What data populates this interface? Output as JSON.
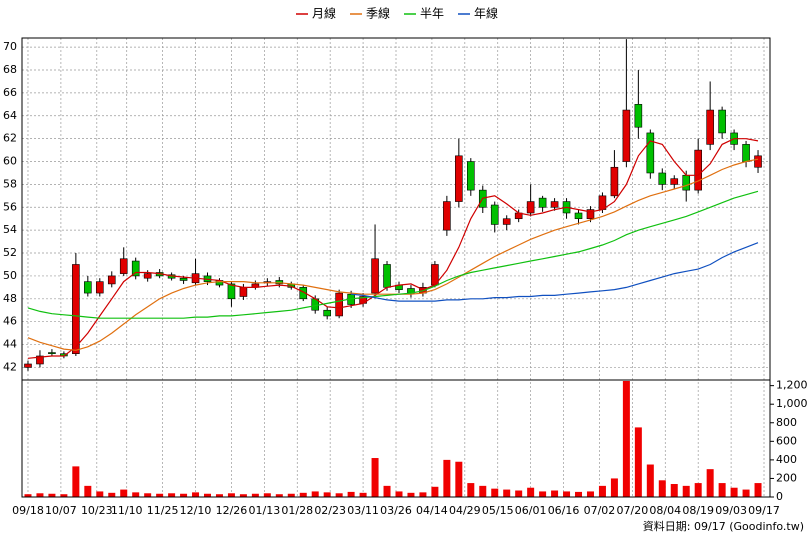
{
  "chart_data": {
    "type": "candlestick",
    "x": [
      0,
      4,
      8,
      12,
      16,
      20,
      24,
      28,
      32,
      36,
      40,
      44,
      48,
      52,
      56,
      60,
      64,
      68,
      72,
      76,
      80,
      84,
      88,
      92,
      96,
      100,
      104,
      108,
      112,
      116,
      120,
      124,
      128,
      132,
      136,
      140,
      144,
      148,
      152,
      156,
      160,
      164,
      168,
      172,
      176,
      180,
      184,
      188,
      192,
      196,
      200,
      204,
      208,
      212,
      216,
      220,
      224,
      228,
      232,
      236,
      240,
      244
    ],
    "candles": {
      "up_color": "#e00000",
      "down_color": "#00c000",
      "open": [
        42.0,
        42.3,
        43.3,
        43.2,
        43.2,
        49.5,
        48.5,
        49.3,
        50.2,
        51.3,
        49.8,
        50.3,
        50.1,
        49.8,
        49.4,
        50.0,
        49.6,
        49.3,
        48.2,
        49.0,
        49.4,
        49.6,
        49.3,
        49.0,
        48.0,
        47.0,
        46.5,
        48.4,
        47.6,
        48.5,
        51.0,
        49.2,
        48.9,
        48.5,
        49.2,
        54.0,
        56.5,
        60.0,
        57.5,
        56.2,
        54.5,
        55.0,
        55.5,
        56.8,
        56.0,
        56.5,
        55.5,
        55.0,
        55.8,
        57.0,
        60.0,
        65.0,
        62.5,
        59.0,
        58.0,
        58.8,
        57.5,
        61.5,
        64.5,
        62.5,
        61.5,
        59.5
      ],
      "high": [
        42.6,
        43.5,
        43.6,
        43.4,
        52.0,
        50.0,
        49.8,
        50.4,
        52.5,
        51.6,
        50.5,
        50.6,
        50.3,
        50.0,
        51.5,
        50.3,
        49.8,
        49.5,
        49.3,
        49.6,
        49.8,
        49.9,
        49.5,
        49.2,
        48.3,
        47.3,
        48.8,
        48.7,
        48.5,
        54.5,
        51.3,
        49.5,
        49.2,
        49.4,
        51.3,
        57.0,
        62.0,
        60.3,
        57.9,
        56.5,
        55.3,
        55.8,
        58.0,
        57.0,
        56.8,
        56.8,
        55.8,
        56.1,
        57.3,
        61.0,
        70.7,
        68.0,
        62.8,
        59.4,
        58.8,
        59.2,
        62.0,
        67.0,
        64.8,
        62.8,
        61.8,
        61.0
      ],
      "low": [
        41.7,
        42.0,
        43.0,
        42.8,
        43.0,
        48.2,
        48.2,
        49.0,
        50.0,
        49.7,
        49.5,
        49.8,
        49.6,
        49.3,
        49.2,
        49.2,
        49.0,
        47.3,
        47.9,
        48.8,
        49.1,
        49.0,
        48.8,
        47.8,
        46.7,
        46.2,
        46.3,
        47.2,
        47.3,
        48.2,
        48.7,
        48.5,
        48.1,
        48.2,
        49.0,
        53.5,
        56.0,
        57.0,
        55.5,
        53.8,
        54.0,
        54.7,
        55.2,
        55.6,
        55.7,
        55.0,
        54.5,
        54.7,
        55.5,
        56.8,
        59.5,
        62.0,
        58.5,
        57.5,
        57.6,
        56.5,
        57.2,
        61.0,
        62.0,
        61.0,
        59.5,
        59.0
      ],
      "close": [
        42.3,
        43.0,
        43.2,
        43.0,
        51.0,
        48.5,
        49.5,
        50.0,
        51.5,
        50.0,
        50.2,
        50.0,
        49.8,
        49.6,
        50.2,
        49.5,
        49.2,
        48.0,
        49.0,
        49.3,
        49.5,
        49.3,
        49.0,
        48.0,
        47.0,
        46.5,
        48.5,
        47.5,
        48.2,
        51.5,
        49.0,
        48.8,
        48.5,
        49.0,
        51.0,
        56.5,
        60.5,
        57.5,
        56.0,
        54.5,
        55.0,
        55.5,
        56.5,
        56.0,
        56.5,
        55.5,
        55.0,
        55.8,
        57.0,
        59.5,
        64.5,
        63.0,
        59.0,
        58.0,
        58.5,
        57.5,
        61.0,
        64.5,
        62.5,
        61.5,
        60.0,
        60.5
      ]
    },
    "series": [
      {
        "name": "月線",
        "color": "#d00000",
        "values": [
          42.8,
          42.9,
          43.0,
          43.0,
          43.8,
          45.0,
          46.5,
          48.0,
          49.5,
          50.3,
          50.3,
          50.2,
          50.0,
          49.9,
          49.8,
          49.7,
          49.6,
          49.2,
          49.0,
          49.0,
          49.1,
          49.2,
          49.1,
          48.6,
          48.0,
          47.3,
          47.2,
          47.4,
          47.6,
          48.3,
          49.0,
          49.2,
          49.3,
          48.8,
          49.2,
          50.5,
          52.5,
          55.0,
          56.8,
          57.0,
          56.3,
          55.5,
          55.3,
          55.5,
          55.8,
          56.0,
          55.8,
          55.6,
          55.8,
          56.5,
          58.0,
          60.5,
          61.8,
          61.5,
          60.0,
          58.8,
          58.8,
          59.8,
          61.5,
          62.0,
          62.0,
          61.8
        ]
      },
      {
        "name": "季線",
        "color": "#e07010",
        "values": [
          44.6,
          44.2,
          43.9,
          43.6,
          43.5,
          43.8,
          44.3,
          45.0,
          45.8,
          46.6,
          47.3,
          48.0,
          48.5,
          48.9,
          49.2,
          49.4,
          49.5,
          49.5,
          49.5,
          49.4,
          49.4,
          49.4,
          49.3,
          49.2,
          49.0,
          48.8,
          48.6,
          48.5,
          48.4,
          48.4,
          48.4,
          48.4,
          48.4,
          48.5,
          48.8,
          49.3,
          49.9,
          50.5,
          51.1,
          51.7,
          52.2,
          52.7,
          53.2,
          53.6,
          54.0,
          54.3,
          54.6,
          54.9,
          55.2,
          55.6,
          56.1,
          56.6,
          57.0,
          57.3,
          57.6,
          57.9,
          58.3,
          58.8,
          59.3,
          59.7,
          60.0,
          60.2
        ]
      },
      {
        "name": "半年",
        "color": "#10c010",
        "values": [
          47.2,
          46.9,
          46.7,
          46.6,
          46.5,
          46.4,
          46.3,
          46.3,
          46.3,
          46.3,
          46.3,
          46.3,
          46.3,
          46.3,
          46.4,
          46.4,
          46.5,
          46.5,
          46.6,
          46.7,
          46.8,
          46.9,
          47.0,
          47.2,
          47.4,
          47.6,
          47.8,
          48.0,
          48.1,
          48.2,
          48.3,
          48.4,
          48.5,
          48.7,
          49.1,
          49.6,
          50.0,
          50.3,
          50.5,
          50.7,
          50.9,
          51.1,
          51.3,
          51.5,
          51.7,
          51.9,
          52.1,
          52.4,
          52.7,
          53.1,
          53.6,
          54.0,
          54.3,
          54.6,
          54.9,
          55.2,
          55.6,
          56.0,
          56.4,
          56.8,
          57.1,
          57.4
        ]
      },
      {
        "name": "年線",
        "color": "#1050c0",
        "values": [
          null,
          null,
          null,
          null,
          null,
          null,
          null,
          null,
          null,
          null,
          null,
          null,
          null,
          null,
          null,
          null,
          null,
          null,
          null,
          null,
          null,
          null,
          null,
          null,
          null,
          null,
          null,
          48.4,
          48.3,
          48.1,
          47.9,
          47.8,
          47.8,
          47.8,
          47.8,
          47.9,
          47.9,
          48.0,
          48.0,
          48.1,
          48.1,
          48.2,
          48.2,
          48.3,
          48.3,
          48.4,
          48.5,
          48.6,
          48.7,
          48.8,
          49.0,
          49.3,
          49.6,
          49.9,
          50.2,
          50.4,
          50.6,
          51.0,
          51.6,
          52.1,
          52.5,
          52.9
        ]
      }
    ],
    "volume": {
      "color": "#f00000",
      "values": [
        30,
        40,
        35,
        30,
        330,
        120,
        60,
        45,
        80,
        50,
        40,
        35,
        40,
        35,
        50,
        35,
        30,
        40,
        30,
        35,
        40,
        30,
        35,
        45,
        60,
        50,
        40,
        55,
        45,
        420,
        120,
        60,
        45,
        50,
        110,
        400,
        380,
        150,
        120,
        90,
        80,
        70,
        100,
        60,
        70,
        60,
        55,
        60,
        120,
        200,
        1250,
        750,
        350,
        180,
        140,
        120,
        150,
        300,
        150,
        100,
        80,
        150
      ],
      "ylim": [
        0,
        1250
      ],
      "yticks": [
        0,
        200,
        400,
        600,
        800,
        {
          "value": 1000,
          "label": "1,000"
        },
        {
          "value": 1200,
          "label": "1,200"
        }
      ]
    },
    "xlim": [
      -2,
      248
    ],
    "xticks": [
      {
        "value": 0,
        "label": "09/18"
      },
      {
        "value": 11,
        "label": "10/07"
      },
      {
        "value": 23,
        "label": "10/23"
      },
      {
        "value": 33,
        "label": "11/10"
      },
      {
        "value": 45,
        "label": "11/25"
      },
      {
        "value": 56,
        "label": "12/10"
      },
      {
        "value": 68,
        "label": "12/26"
      },
      {
        "value": 79,
        "label": "01/13"
      },
      {
        "value": 90,
        "label": "01/28"
      },
      {
        "value": 101,
        "label": "02/23"
      },
      {
        "value": 112,
        "label": "03/11"
      },
      {
        "value": 123,
        "label": "03/26"
      },
      {
        "value": 135,
        "label": "04/14"
      },
      {
        "value": 146,
        "label": "04/29"
      },
      {
        "value": 157,
        "label": "05/15"
      },
      {
        "value": 168,
        "label": "06/01"
      },
      {
        "value": 179,
        "label": "06/16"
      },
      {
        "value": 191,
        "label": "07/02"
      },
      {
        "value": 202,
        "label": "07/20"
      },
      {
        "value": 213,
        "label": "08/04"
      },
      {
        "value": 224,
        "label": "08/19"
      },
      {
        "value": 235,
        "label": "09/03"
      },
      {
        "value": 246,
        "label": "09/17"
      }
    ],
    "ylim": [
      40.9,
      70.8
    ],
    "yticks": [
      42,
      44,
      46,
      48,
      50,
      52,
      54,
      56,
      58,
      60,
      62,
      64,
      66,
      68,
      70
    ],
    "grid": true,
    "legend": "top",
    "footer": "資料日期: 09/17  (Goodinfo.tw)"
  }
}
